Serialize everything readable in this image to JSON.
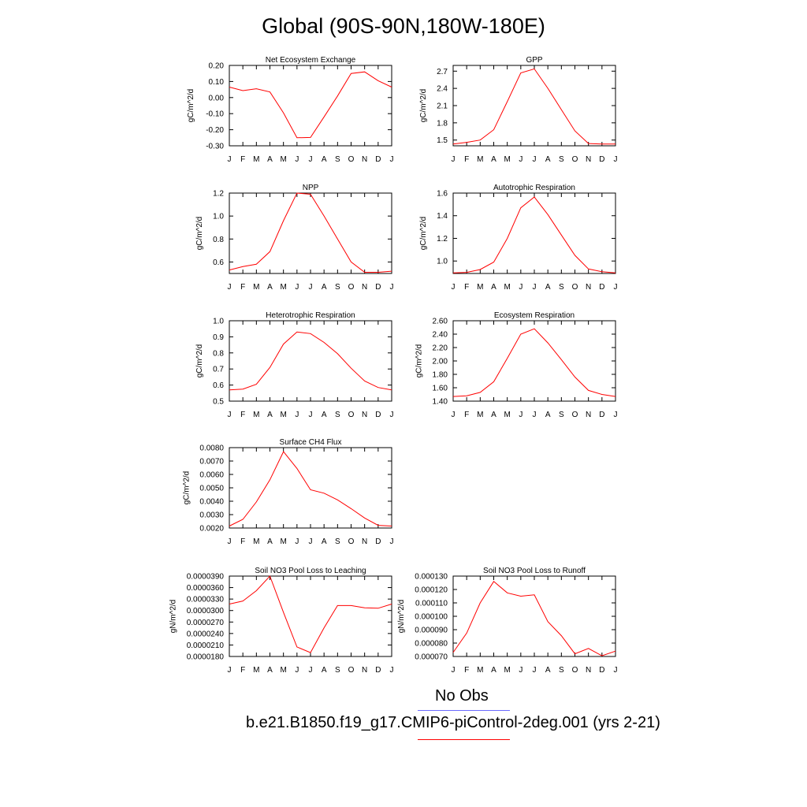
{
  "title": "Global (90S-90N,180W-180E)",
  "months": [
    "J",
    "F",
    "M",
    "A",
    "M",
    "J",
    "J",
    "A",
    "S",
    "O",
    "N",
    "D",
    "J"
  ],
  "legend": {
    "obs_label": "No Obs",
    "obs_color": "#6b6bff",
    "model_label": "b.e21.B1850.f19_g17.CMIP6-piControl-2deg.001 (yrs 2-21)",
    "model_color": "#ff0000"
  },
  "chart_data": [
    {
      "type": "line",
      "title": "Net Ecosystem Exchange",
      "ylabel": "gC/m^2/d",
      "ylim": [
        -0.3,
        0.2
      ],
      "yticks": [
        "0.20",
        "0.10",
        "0.00",
        "-0.10",
        "-0.20",
        "-0.30"
      ],
      "ytick_values": [
        0.2,
        0.1,
        0.0,
        -0.1,
        -0.2,
        -0.3
      ],
      "series": [
        {
          "values": [
            0.065,
            0.043,
            0.055,
            0.035,
            -0.095,
            -0.25,
            -0.248,
            -0.12,
            0.01,
            0.15,
            0.16,
            0.105,
            0.065
          ]
        }
      ]
    },
    {
      "type": "line",
      "title": "GPP",
      "ylabel": "gC/m^2/d",
      "ylim": [
        1.4,
        2.8
      ],
      "yticks": [
        "2.7",
        "2.4",
        "2.1",
        "1.8",
        "1.5"
      ],
      "ytick_values": [
        2.7,
        2.4,
        2.1,
        1.8,
        1.5
      ],
      "series": [
        {
          "values": [
            1.43,
            1.46,
            1.5,
            1.68,
            2.17,
            2.67,
            2.74,
            2.4,
            2.03,
            1.66,
            1.44,
            1.43,
            1.43
          ]
        }
      ]
    },
    {
      "type": "line",
      "title": "NPP",
      "ylabel": "gC/m^2/d",
      "ylim": [
        0.5,
        1.2
      ],
      "yticks": [
        "1.2",
        "1.0",
        "0.8",
        "0.6"
      ],
      "ytick_values": [
        1.2,
        1.0,
        0.8,
        0.6
      ],
      "series": [
        {
          "values": [
            0.53,
            0.56,
            0.58,
            0.69,
            0.96,
            1.2,
            1.19,
            1.0,
            0.8,
            0.6,
            0.51,
            0.51,
            0.52
          ]
        }
      ]
    },
    {
      "type": "line",
      "title": "Autotrophic Respiration",
      "ylabel": "gC/m^2/d",
      "ylim": [
        0.89,
        1.6
      ],
      "yticks": [
        "1.6",
        "1.4",
        "1.2",
        "1.0"
      ],
      "ytick_values": [
        1.6,
        1.4,
        1.2,
        1.0
      ],
      "series": [
        {
          "values": [
            0.895,
            0.9,
            0.925,
            0.99,
            1.2,
            1.47,
            1.565,
            1.41,
            1.23,
            1.05,
            0.93,
            0.905,
            0.895
          ]
        }
      ]
    },
    {
      "type": "line",
      "title": "Heterotrophic Respiration",
      "ylabel": "gC/m^2/d",
      "ylim": [
        0.5,
        1.0
      ],
      "yticks": [
        "1.0",
        "0.9",
        "0.8",
        "0.7",
        "0.6",
        "0.5"
      ],
      "ytick_values": [
        1.0,
        0.9,
        0.8,
        0.7,
        0.6,
        0.5
      ],
      "series": [
        {
          "values": [
            0.57,
            0.575,
            0.605,
            0.71,
            0.855,
            0.93,
            0.92,
            0.865,
            0.795,
            0.705,
            0.625,
            0.585,
            0.57
          ]
        }
      ]
    },
    {
      "type": "line",
      "title": "Ecosystem Respiration",
      "ylabel": "gC/m^2/d",
      "ylim": [
        1.4,
        2.6
      ],
      "yticks": [
        "2.60",
        "2.40",
        "2.20",
        "2.00",
        "1.80",
        "1.60",
        "1.40"
      ],
      "ytick_values": [
        2.6,
        2.4,
        2.2,
        2.0,
        1.8,
        1.6,
        1.4
      ],
      "series": [
        {
          "values": [
            1.47,
            1.48,
            1.53,
            1.69,
            2.04,
            2.4,
            2.48,
            2.27,
            2.02,
            1.76,
            1.56,
            1.5,
            1.47
          ]
        }
      ]
    },
    {
      "type": "line",
      "title": "Surface CH4 Flux",
      "ylabel": "gC/m^2/d",
      "ylim": [
        0.002,
        0.008
      ],
      "yticks": [
        "0.0080",
        "0.0070",
        "0.0060",
        "0.0050",
        "0.0040",
        "0.0030",
        "0.0020"
      ],
      "ytick_values": [
        0.008,
        0.007,
        0.006,
        0.005,
        0.004,
        0.003,
        0.002
      ],
      "series": [
        {
          "values": [
            0.00215,
            0.00265,
            0.00395,
            0.0056,
            0.0077,
            0.00645,
            0.00485,
            0.0046,
            0.0041,
            0.00345,
            0.00275,
            0.0022,
            0.00215
          ]
        }
      ]
    },
    {
      "type": "line",
      "title": "Soil NO3 Pool Loss to Leaching",
      "ylabel": "gN/m^2/d",
      "ylim": [
        1.8e-05,
        3.9e-05
      ],
      "yticks": [
        "0.0000390",
        "0.0000360",
        "0.0000330",
        "0.0000300",
        "0.0000270",
        "0.0000240",
        "0.0000210",
        "0.0000180"
      ],
      "ytick_values": [
        3.9e-05,
        3.6e-05,
        3.3e-05,
        3e-05,
        2.7e-05,
        2.4e-05,
        2.1e-05,
        1.8e-05
      ],
      "series": [
        {
          "values": [
            3.17e-05,
            3.25e-05,
            3.52e-05,
            3.9e-05,
            2.95e-05,
            2.05e-05,
            1.9e-05,
            2.55e-05,
            3.13e-05,
            3.13e-05,
            3.07e-05,
            3.06e-05,
            3.17e-05
          ]
        }
      ]
    },
    {
      "type": "line",
      "title": "Soil NO3 Pool Loss to Runoff",
      "ylabel": "gN/m^2/d",
      "ylim": [
        7e-05,
        0.00013
      ],
      "yticks": [
        "0.000130",
        "0.000120",
        "0.000110",
        "0.000100",
        "0.000090",
        "0.000080",
        "0.000070"
      ],
      "ytick_values": [
        0.00013,
        0.00012,
        0.00011,
        0.0001,
        9e-05,
        8e-05,
        7e-05
      ],
      "series": [
        {
          "values": [
            7.3e-05,
            8.75e-05,
            0.00011,
            0.000126,
            0.0001175,
            0.000115,
            0.000116,
            9.6e-05,
            8.55e-05,
            7.2e-05,
            7.6e-05,
            7.05e-05,
            7.4e-05
          ]
        }
      ]
    }
  ]
}
